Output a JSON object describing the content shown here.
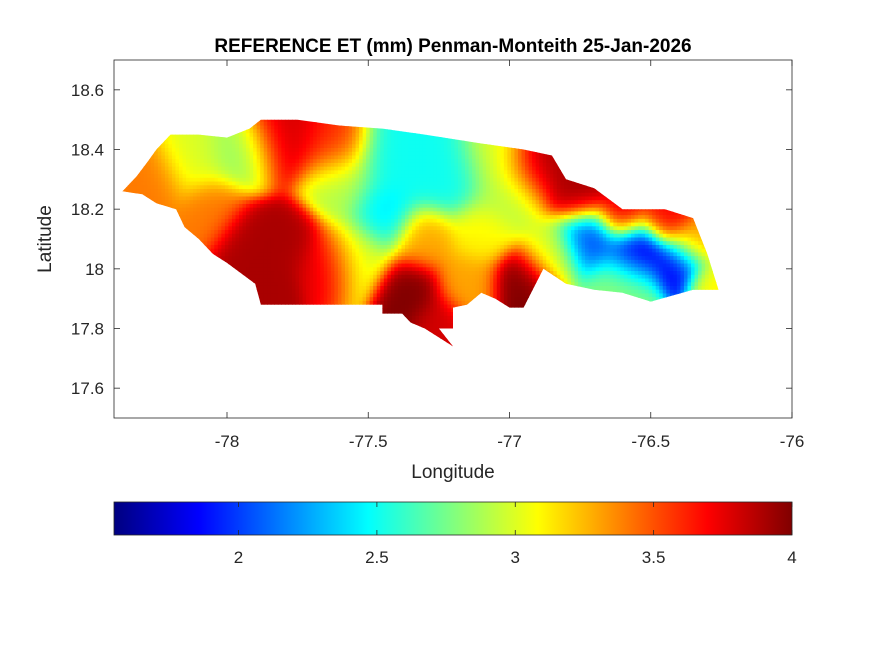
{
  "chart_data": {
    "type": "heatmap",
    "title": "REFERENCE ET (mm) Penman-Monteith 25-Jan-2026",
    "xlabel": "Longitude",
    "ylabel": "Latitude",
    "xlim": [
      -78.4,
      -76
    ],
    "ylim": [
      17.5,
      18.7
    ],
    "xticks": [
      -78,
      -77.5,
      -77,
      -76.5,
      -76
    ],
    "xtick_labels": [
      "-78",
      "-77.5",
      "-77",
      "-76.5",
      "-76"
    ],
    "yticks": [
      17.6,
      17.8,
      18,
      18.2,
      18.4,
      18.6
    ],
    "ytick_labels": [
      "17.6",
      "17.8",
      "18",
      "18.2",
      "18.4",
      "18.6"
    ],
    "colormap": "jet",
    "clim": [
      1.55,
      4
    ],
    "colorbar_location": "south",
    "colorbar_ticks": [
      2,
      2.5,
      3,
      3.5,
      4
    ],
    "colorbar_tick_labels": [
      "2",
      "2.5",
      "3",
      "3.5",
      "4"
    ],
    "grid": false,
    "region_outline": [
      [
        -78.37,
        18.26
      ],
      [
        -78.32,
        18.31
      ],
      [
        -78.28,
        18.36
      ],
      [
        -78.25,
        18.4
      ],
      [
        -78.2,
        18.45
      ],
      [
        -78.1,
        18.45
      ],
      [
        -78.0,
        18.44
      ],
      [
        -77.92,
        18.47
      ],
      [
        -77.88,
        18.5
      ],
      [
        -77.75,
        18.5
      ],
      [
        -77.6,
        18.48
      ],
      [
        -77.45,
        18.47
      ],
      [
        -77.3,
        18.45
      ],
      [
        -77.1,
        18.42
      ],
      [
        -76.95,
        18.4
      ],
      [
        -76.85,
        18.38
      ],
      [
        -76.8,
        18.3
      ],
      [
        -76.7,
        18.27
      ],
      [
        -76.6,
        18.2
      ],
      [
        -76.45,
        18.2
      ],
      [
        -76.35,
        18.17
      ],
      [
        -76.3,
        18.05
      ],
      [
        -76.26,
        17.93
      ],
      [
        -76.35,
        17.93
      ],
      [
        -76.5,
        17.89
      ],
      [
        -76.6,
        17.92
      ],
      [
        -76.7,
        17.93
      ],
      [
        -76.8,
        17.95
      ],
      [
        -76.88,
        18.0
      ],
      [
        -76.95,
        17.87
      ],
      [
        -77.0,
        17.87
      ],
      [
        -77.05,
        17.9
      ],
      [
        -77.1,
        17.92
      ],
      [
        -77.15,
        17.88
      ],
      [
        -77.2,
        17.87
      ],
      [
        -77.2,
        17.8
      ],
      [
        -77.25,
        17.8
      ],
      [
        -77.2,
        17.74
      ],
      [
        -77.3,
        17.8
      ],
      [
        -77.35,
        17.82
      ],
      [
        -77.38,
        17.85
      ],
      [
        -77.45,
        17.85
      ],
      [
        -77.45,
        17.88
      ],
      [
        -77.55,
        17.88
      ],
      [
        -77.7,
        17.88
      ],
      [
        -77.8,
        17.88
      ],
      [
        -77.88,
        17.88
      ],
      [
        -77.9,
        17.95
      ],
      [
        -78.0,
        18.02
      ],
      [
        -78.05,
        18.05
      ],
      [
        -78.1,
        18.1
      ],
      [
        -78.15,
        18.14
      ],
      [
        -78.18,
        18.2
      ],
      [
        -78.25,
        18.22
      ],
      [
        -78.3,
        18.25
      ],
      [
        -78.37,
        18.26
      ]
    ],
    "field_centers": [
      {
        "lon": -78.28,
        "lat": 18.3,
        "value": 3.4,
        "spread": 0.07
      },
      {
        "lon": -78.12,
        "lat": 18.38,
        "value": 3.0,
        "spread": 0.07
      },
      {
        "lon": -77.95,
        "lat": 18.4,
        "value": 2.8,
        "spread": 0.07
      },
      {
        "lon": -77.8,
        "lat": 18.45,
        "value": 3.8,
        "spread": 0.08
      },
      {
        "lon": -77.62,
        "lat": 18.42,
        "value": 3.6,
        "spread": 0.07
      },
      {
        "lon": -77.4,
        "lat": 18.36,
        "value": 2.5,
        "spread": 0.09
      },
      {
        "lon": -77.22,
        "lat": 18.32,
        "value": 2.5,
        "spread": 0.08
      },
      {
        "lon": -77.05,
        "lat": 18.38,
        "value": 3.0,
        "spread": 0.07
      },
      {
        "lon": -76.9,
        "lat": 18.35,
        "value": 3.9,
        "spread": 0.07
      },
      {
        "lon": -76.75,
        "lat": 18.26,
        "value": 3.9,
        "spread": 0.06
      },
      {
        "lon": -76.6,
        "lat": 18.18,
        "value": 3.8,
        "spread": 0.05
      },
      {
        "lon": -76.45,
        "lat": 18.17,
        "value": 3.7,
        "spread": 0.05
      },
      {
        "lon": -76.35,
        "lat": 18.08,
        "value": 3.3,
        "spread": 0.05
      },
      {
        "lon": -76.55,
        "lat": 18.06,
        "value": 1.7,
        "spread": 0.06
      },
      {
        "lon": -76.4,
        "lat": 18.01,
        "value": 1.8,
        "spread": 0.05
      },
      {
        "lon": -76.72,
        "lat": 18.1,
        "value": 2.0,
        "spread": 0.06
      },
      {
        "lon": -76.6,
        "lat": 17.95,
        "value": 2.8,
        "spread": 0.07
      },
      {
        "lon": -76.3,
        "lat": 17.95,
        "value": 3.1,
        "spread": 0.04
      },
      {
        "lon": -76.85,
        "lat": 18.05,
        "value": 3.0,
        "spread": 0.06
      },
      {
        "lon": -76.95,
        "lat": 17.95,
        "value": 4.0,
        "spread": 0.06
      },
      {
        "lon": -77.15,
        "lat": 17.95,
        "value": 3.3,
        "spread": 0.06
      },
      {
        "lon": -77.25,
        "lat": 17.82,
        "value": 3.8,
        "spread": 0.05
      },
      {
        "lon": -77.35,
        "lat": 17.92,
        "value": 4.0,
        "spread": 0.06
      },
      {
        "lon": -77.45,
        "lat": 18.18,
        "value": 2.4,
        "spread": 0.06
      },
      {
        "lon": -77.3,
        "lat": 18.1,
        "value": 3.3,
        "spread": 0.06
      },
      {
        "lon": -77.55,
        "lat": 18.05,
        "value": 3.0,
        "spread": 0.07
      },
      {
        "lon": -77.65,
        "lat": 18.02,
        "value": 3.8,
        "spread": 0.06
      },
      {
        "lon": -77.78,
        "lat": 18.1,
        "value": 3.9,
        "spread": 0.06
      },
      {
        "lon": -77.92,
        "lat": 18.1,
        "value": 3.9,
        "spread": 0.06
      },
      {
        "lon": -78.05,
        "lat": 18.2,
        "value": 3.4,
        "spread": 0.06
      },
      {
        "lon": -77.85,
        "lat": 17.95,
        "value": 3.9,
        "spread": 0.05
      },
      {
        "lon": -77.1,
        "lat": 18.12,
        "value": 3.1,
        "spread": 0.06
      },
      {
        "lon": -77.0,
        "lat": 18.25,
        "value": 2.9,
        "spread": 0.07
      },
      {
        "lon": -77.6,
        "lat": 18.28,
        "value": 2.9,
        "spread": 0.07
      }
    ]
  }
}
